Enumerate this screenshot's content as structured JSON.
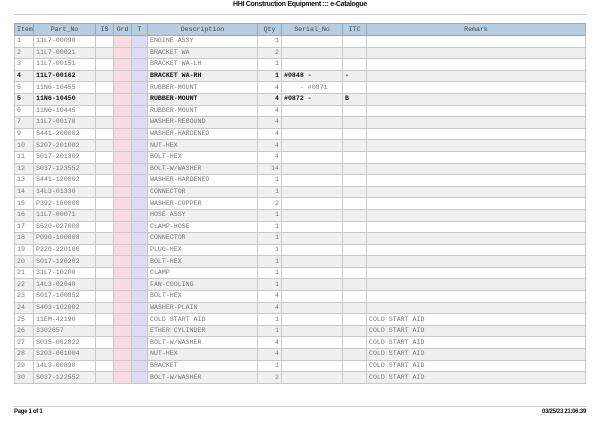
{
  "header": {
    "title": "HHI Construction Equipment ::: e-Catalogue"
  },
  "table": {
    "columns": [
      "Item",
      "Part_No",
      "IS",
      "Ord",
      "T",
      "Description",
      "Qty",
      "Serial_No",
      "ITC",
      "Remark"
    ],
    "rows": [
      {
        "item": "1",
        "part_no": "11L7-00090",
        "is": "",
        "description": "ENGINE ASSY",
        "qty": "1",
        "serial_no": "",
        "itc": "",
        "remark": "",
        "bold": false
      },
      {
        "item": "2",
        "part_no": "11L7-00021",
        "is": "",
        "description": "BRACKET WA",
        "qty": "2",
        "serial_no": "",
        "itc": "",
        "remark": "",
        "bold": false
      },
      {
        "item": "3",
        "part_no": "11L7-00151",
        "is": "",
        "description": "BRACKET WA-LH",
        "qty": "1",
        "serial_no": "",
        "itc": "",
        "remark": "",
        "bold": false
      },
      {
        "item": "4",
        "part_no": "11L7-00162",
        "is": "",
        "description": "BRACKET WA-RH",
        "qty": "1",
        "serial_no": "#0848 -",
        "itc": "-",
        "remark": "",
        "bold": true
      },
      {
        "item": "5",
        "part_no": "11N6-10455",
        "is": "",
        "description": "RUBBER-MOUNT",
        "qty": "4",
        "serial_no": "    - #0871",
        "itc": "",
        "remark": "",
        "bold": false
      },
      {
        "item": "5",
        "part_no": "11N6-10450",
        "is": "",
        "description": "RUBBER-MOUNT",
        "qty": "4",
        "serial_no": "#0872 -",
        "itc": "B",
        "remark": "",
        "bold": true
      },
      {
        "item": "6",
        "part_no": "11N6-10445",
        "is": "",
        "description": "RUBBER-MOUNT",
        "qty": "4",
        "serial_no": "",
        "itc": "",
        "remark": "",
        "bold": false
      },
      {
        "item": "7",
        "part_no": "11L7-00170",
        "is": "",
        "description": "WASHER-REBOUND",
        "qty": "4",
        "serial_no": "",
        "itc": "",
        "remark": "",
        "bold": false
      },
      {
        "item": "9",
        "part_no": "S441-200002",
        "is": "",
        "description": "WASHER-HARDENED",
        "qty": "4",
        "serial_no": "",
        "itc": "",
        "remark": "",
        "bold": false
      },
      {
        "item": "10",
        "part_no": "S207-201002",
        "is": "",
        "description": "NUT-HEX",
        "qty": "4",
        "serial_no": "",
        "itc": "",
        "remark": "",
        "bold": false
      },
      {
        "item": "11",
        "part_no": "S017-201302",
        "is": "",
        "description": "BOLT-HEX",
        "qty": "4",
        "serial_no": "",
        "itc": "",
        "remark": "",
        "bold": false
      },
      {
        "item": "12",
        "part_no": "S037-123552",
        "is": "",
        "description": "BOLT-W/WASHER",
        "qty": "14",
        "serial_no": "",
        "itc": "",
        "remark": "",
        "bold": false
      },
      {
        "item": "13",
        "part_no": "S441-120002",
        "is": "",
        "description": "WASHER-HARDENED",
        "qty": "1",
        "serial_no": "",
        "itc": "",
        "remark": "",
        "bold": false
      },
      {
        "item": "14",
        "part_no": "14L3-01330",
        "is": "",
        "description": "CONNECTOR",
        "qty": "1",
        "serial_no": "",
        "itc": "",
        "remark": "",
        "bold": false
      },
      {
        "item": "15",
        "part_no": "P392-180000",
        "is": "",
        "description": "WASHER-COPPER",
        "qty": "2",
        "serial_no": "",
        "itc": "",
        "remark": "",
        "bold": false
      },
      {
        "item": "16",
        "part_no": "11L7-00071",
        "is": "",
        "description": "HOSE ASSY",
        "qty": "1",
        "serial_no": "",
        "itc": "",
        "remark": "",
        "bold": false
      },
      {
        "item": "17",
        "part_no": "S520-027000",
        "is": "",
        "description": "CLAMP-HOSE",
        "qty": "1",
        "serial_no": "",
        "itc": "",
        "remark": "",
        "bold": false
      },
      {
        "item": "18",
        "part_no": "P090-100808",
        "is": "",
        "description": "CONNECTOR",
        "qty": "1",
        "serial_no": "",
        "itc": "",
        "remark": "",
        "bold": false
      },
      {
        "item": "19",
        "part_no": "P220-220106",
        "is": "",
        "description": "PLUG-HEX",
        "qty": "1",
        "serial_no": "",
        "itc": "",
        "remark": "",
        "bold": false
      },
      {
        "item": "20",
        "part_no": "S017-120202",
        "is": "",
        "description": "BOLT-HEX",
        "qty": "1",
        "serial_no": "",
        "itc": "",
        "remark": "",
        "bold": false
      },
      {
        "item": "21",
        "part_no": "31L7-10200",
        "is": "",
        "description": "CLAMP",
        "qty": "1",
        "serial_no": "",
        "itc": "",
        "remark": "",
        "bold": false
      },
      {
        "item": "22",
        "part_no": "14L3-02040",
        "is": "",
        "description": "FAN-COOLING",
        "qty": "1",
        "serial_no": "",
        "itc": "",
        "remark": "",
        "bold": false
      },
      {
        "item": "23",
        "part_no": "S017-100852",
        "is": "",
        "description": "BOLT-HEX",
        "qty": "4",
        "serial_no": "",
        "itc": "",
        "remark": "",
        "bold": false
      },
      {
        "item": "24",
        "part_no": "S403-102002",
        "is": "",
        "description": "WASHER-PLAIN",
        "qty": "4",
        "serial_no": "",
        "itc": "",
        "remark": "",
        "bold": false
      },
      {
        "item": "25",
        "part_no": "11EM-42190",
        "is": "",
        "description": "COLD START AID",
        "qty": "1",
        "serial_no": "",
        "itc": "",
        "remark": "COLD START AID",
        "bold": false
      },
      {
        "item": "26",
        "part_no": "3302657",
        "is": "",
        "description": "ETHER CYLINDER",
        "qty": "1",
        "serial_no": "",
        "itc": "",
        "remark": "COLD START AID",
        "bold": false
      },
      {
        "item": "27",
        "part_no": "S035-062022",
        "is": "",
        "description": "BOLT-W/WASHER",
        "qty": "4",
        "serial_no": "",
        "itc": "",
        "remark": "COLD START AID",
        "bold": false
      },
      {
        "item": "28",
        "part_no": "S203-061004",
        "is": "",
        "description": "NUT-HEX",
        "qty": "4",
        "serial_no": "",
        "itc": "",
        "remark": "COLD START AID",
        "bold": false
      },
      {
        "item": "29",
        "part_no": "14L3-00890",
        "is": "",
        "description": "BRACKET",
        "qty": "1",
        "serial_no": "",
        "itc": "",
        "remark": "COLD START AID",
        "bold": false
      },
      {
        "item": "30",
        "part_no": "S037-122552",
        "is": "",
        "description": "BOLT-W/WASHER",
        "qty": "2",
        "serial_no": "",
        "itc": "",
        "remark": "COLD START AID",
        "bold": false
      }
    ]
  },
  "footer": {
    "page": "Page 1 of 1",
    "timestamp": "03/25/23 21:06:39"
  },
  "colors": {
    "header_bg": "#b7cde0",
    "ord_col": "#f8dcdf",
    "t_col": "#dcdcf5",
    "alt_row": "#f0f0f0"
  }
}
